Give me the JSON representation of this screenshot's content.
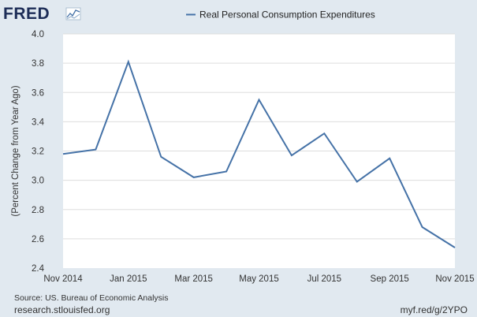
{
  "branding": {
    "logo_text": "FRED",
    "source": "Source: US. Bureau of Economic Analysis",
    "site": "research.stlouisfed.org",
    "short_url": "myf.red/g/2YPO"
  },
  "colors": {
    "background": "#e1e9f0",
    "plot_bg": "#ffffff",
    "series": "#4572a7",
    "grid": "#dddddd",
    "logo": "#1d2d57"
  },
  "chart_data": {
    "type": "line",
    "title": "",
    "xlabel": "",
    "ylabel": "(Percent Change from Year Ago)",
    "legend": [
      "Real Personal Consumption Expenditures"
    ],
    "legend_position": "top-center",
    "grid": true,
    "ylim": [
      2.4,
      4.0
    ],
    "yticks": [
      "2.4",
      "2.6",
      "2.8",
      "3.0",
      "3.2",
      "3.4",
      "3.6",
      "3.8",
      "4.0"
    ],
    "xticks": [
      "Nov 2014",
      "Jan 2015",
      "Mar 2015",
      "May 2015",
      "Jul 2015",
      "Sep 2015",
      "Nov 2015"
    ],
    "categories": [
      "Nov 2014",
      "Dec 2014",
      "Jan 2015",
      "Feb 2015",
      "Mar 2015",
      "Apr 2015",
      "May 2015",
      "Jun 2015",
      "Jul 2015",
      "Aug 2015",
      "Sep 2015",
      "Oct 2015",
      "Nov 2015"
    ],
    "series": [
      {
        "name": "Real Personal Consumption Expenditures",
        "values": [
          3.18,
          3.21,
          3.81,
          3.16,
          3.02,
          3.06,
          3.55,
          3.17,
          3.32,
          2.99,
          3.15,
          2.68,
          2.54
        ]
      }
    ]
  }
}
